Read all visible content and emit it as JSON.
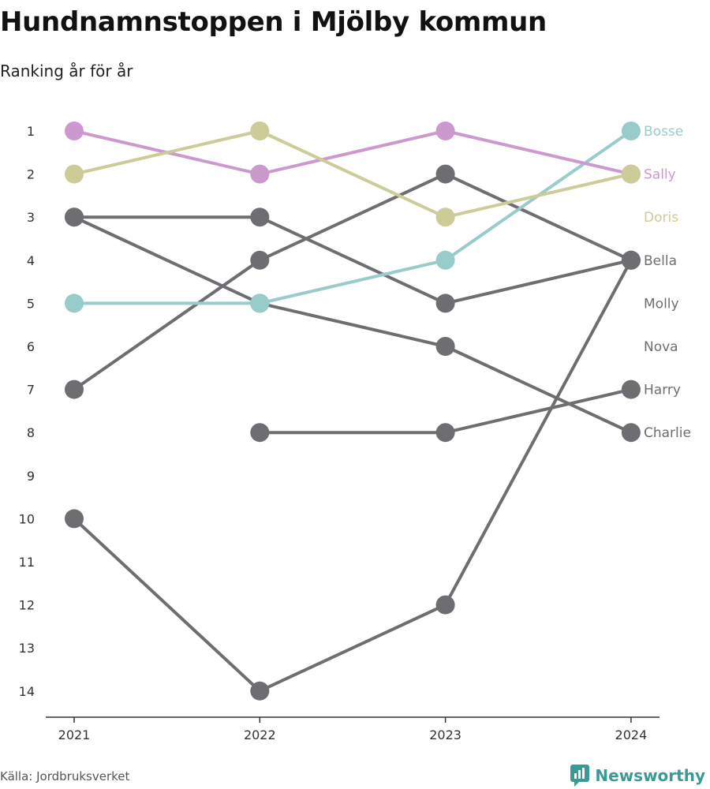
{
  "title": "Hundnamnstoppen i Mjölby kommun",
  "subtitle": "Ranking år för år",
  "source": "Källa: Jordbruksverket",
  "brand": {
    "name": "Newsworthy",
    "icon": "bar-chart-icon",
    "color": "#3a9a96"
  },
  "colors": {
    "highlight_default": "#6e6d72",
    "axis": "#333333"
  },
  "chart_data": {
    "type": "line",
    "title": "Hundnamnstoppen i Mjölby kommun",
    "subtitle": "Ranking år för år",
    "xlabel": "",
    "ylabel": "",
    "x": [
      2021,
      2022,
      2023,
      2024
    ],
    "x_tick_labels": [
      "2021",
      "2022",
      "2023",
      "2024"
    ],
    "y_tick_labels": [
      "1",
      "2",
      "3",
      "4",
      "5",
      "6",
      "7",
      "8",
      "9",
      "10",
      "11",
      "12",
      "13",
      "14"
    ],
    "ylim": [
      1,
      14
    ],
    "y_inverted": true,
    "grid": false,
    "legend": "direct labels at right end",
    "series": [
      {
        "name": "Bosse",
        "color": "#98cccb",
        "values": [
          5,
          5,
          4,
          1
        ]
      },
      {
        "name": "Sally",
        "color": "#cc99cf",
        "values": [
          1,
          2,
          1,
          2
        ]
      },
      {
        "name": "Doris",
        "color": "#cccc99",
        "values": [
          2,
          1,
          3,
          2
        ]
      },
      {
        "name": "Bella",
        "color": "#6e6d72",
        "values": [
          7,
          4,
          2,
          4
        ]
      },
      {
        "name": "Molly",
        "color": "#6e6d72",
        "values": [
          3,
          3,
          5,
          4
        ]
      },
      {
        "name": "Nova",
        "color": "#6e6d72",
        "values": [
          10,
          14,
          12,
          4
        ]
      },
      {
        "name": "Harry",
        "color": "#6e6d72",
        "values": [
          null,
          8,
          8,
          7
        ]
      },
      {
        "name": "Charlie",
        "color": "#6e6d72",
        "values": [
          3,
          5,
          6,
          8
        ]
      }
    ],
    "label_order": [
      "Bosse",
      "Sally",
      "Doris",
      "Bella",
      "Molly",
      "Nova",
      "Harry",
      "Charlie"
    ]
  }
}
